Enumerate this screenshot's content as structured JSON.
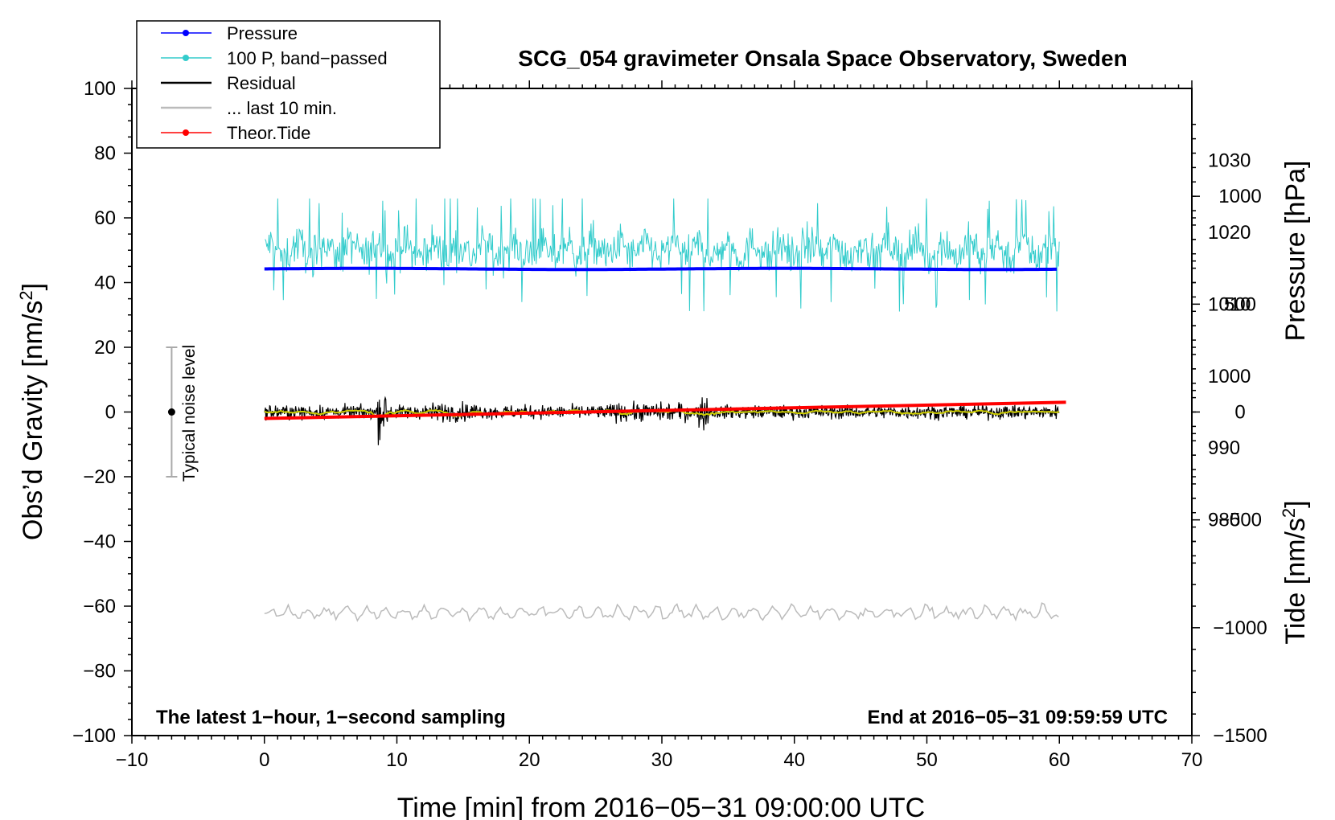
{
  "chart_data": {
    "type": "line",
    "title": "SCG_054 gravimeter Onsala Space Observatory, Sweden",
    "xlabel": "Time [min] from 2016−05−31 09:00:00 UTC",
    "ylabel_left": "Obs’d Gravity [nm/s²]",
    "ylabel_right_pressure": "Pressure [hPa]",
    "ylabel_right_tide": "Tide [nm/s²]",
    "xlim": [
      -10,
      70
    ],
    "ylim": [
      -100,
      100
    ],
    "pressure_axis_range": [
      950,
      1040
    ],
    "tide_axis_range": [
      -1500,
      1500
    ],
    "x_ticks": [
      "−10",
      "0",
      "10",
      "20",
      "30",
      "40",
      "50",
      "60",
      "70"
    ],
    "y_ticks": [
      "−100",
      "−80",
      "−60",
      "−40",
      "−20",
      "0",
      "20",
      "40",
      "60",
      "80",
      "100"
    ],
    "pressure_ticks": [
      "980",
      "990",
      "1000",
      "1010",
      "1020",
      "1030"
    ],
    "tide_ticks": [
      "−1500",
      "−1000",
      "−500",
      "0",
      "500",
      "1000"
    ],
    "footnote_left": "The latest 1−hour, 1−second sampling",
    "footnote_right": "End at 2016−05−31 09:59:59 UTC",
    "noise_label": "Typical noise level",
    "noise_level": {
      "x": -7,
      "center": 0,
      "low": -20,
      "high": 20
    },
    "legend_position": "top-left",
    "series": [
      {
        "name": "Pressure",
        "color": "#0000ff",
        "axis": "pressure",
        "x": [
          0,
          60
        ],
        "values": [
          1014.9,
          1014.9
        ]
      },
      {
        "name": "100 P, band−passed",
        "color": "#33cccc",
        "axis": "gravity",
        "x": [
          0,
          60
        ],
        "values": [
          50,
          50
        ],
        "fluctuation": [
          28,
          66
        ]
      },
      {
        "name": "Residual",
        "color": "#000000",
        "axis": "gravity",
        "x": [
          0,
          60
        ],
        "values": [
          0,
          0
        ],
        "fluctuation": [
          -14,
          13
        ]
      },
      {
        "name": "... last 10 min.",
        "color": "#bbbbbb",
        "axis": "gravity",
        "x": [
          0,
          60
        ],
        "values": [
          -62,
          -62
        ],
        "fluctuation": [
          -68,
          -58
        ]
      },
      {
        "name": "Theor.Tide",
        "color": "#ff0000",
        "axis": "tide",
        "x": [
          0,
          60.5
        ],
        "values": [
          -30,
          45
        ]
      }
    ],
    "smoothed_residual_color": "#cccc00"
  }
}
